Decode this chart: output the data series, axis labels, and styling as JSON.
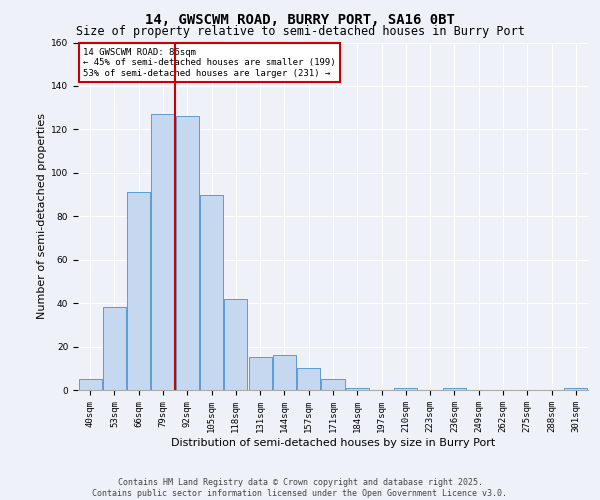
{
  "title": "14, GWSCWM ROAD, BURRY PORT, SA16 0BT",
  "subtitle": "Size of property relative to semi-detached houses in Burry Port",
  "xlabel": "Distribution of semi-detached houses by size in Burry Port",
  "ylabel": "Number of semi-detached properties",
  "categories": [
    "40sqm",
    "53sqm",
    "66sqm",
    "79sqm",
    "92sqm",
    "105sqm",
    "118sqm",
    "131sqm",
    "144sqm",
    "157sqm",
    "171sqm",
    "184sqm",
    "197sqm",
    "210sqm",
    "223sqm",
    "236sqm",
    "249sqm",
    "262sqm",
    "275sqm",
    "288sqm",
    "301sqm"
  ],
  "values": [
    5,
    38,
    91,
    127,
    126,
    90,
    42,
    15,
    16,
    10,
    5,
    1,
    0,
    1,
    0,
    1,
    0,
    0,
    0,
    0,
    1
  ],
  "bar_color": "#c5d8f0",
  "bar_edge_color": "#5b9bd5",
  "red_line_x": 3.5,
  "annotation_text": "14 GWSCWM ROAD: 86sqm\n← 45% of semi-detached houses are smaller (199)\n53% of semi-detached houses are larger (231) →",
  "annotation_box_color": "#ffffff",
  "annotation_box_edge": "#cc0000",
  "red_line_color": "#cc0000",
  "ylim": [
    0,
    160
  ],
  "yticks": [
    0,
    20,
    40,
    60,
    80,
    100,
    120,
    140,
    160
  ],
  "footer_text": "Contains HM Land Registry data © Crown copyright and database right 2025.\nContains public sector information licensed under the Open Government Licence v3.0.",
  "background_color": "#eef2f8",
  "grid_color": "#ffffff",
  "title_fontsize": 10,
  "subtitle_fontsize": 8.5,
  "axis_label_fontsize": 8,
  "tick_fontsize": 6.5,
  "annotation_fontsize": 6.5,
  "footer_fontsize": 6
}
